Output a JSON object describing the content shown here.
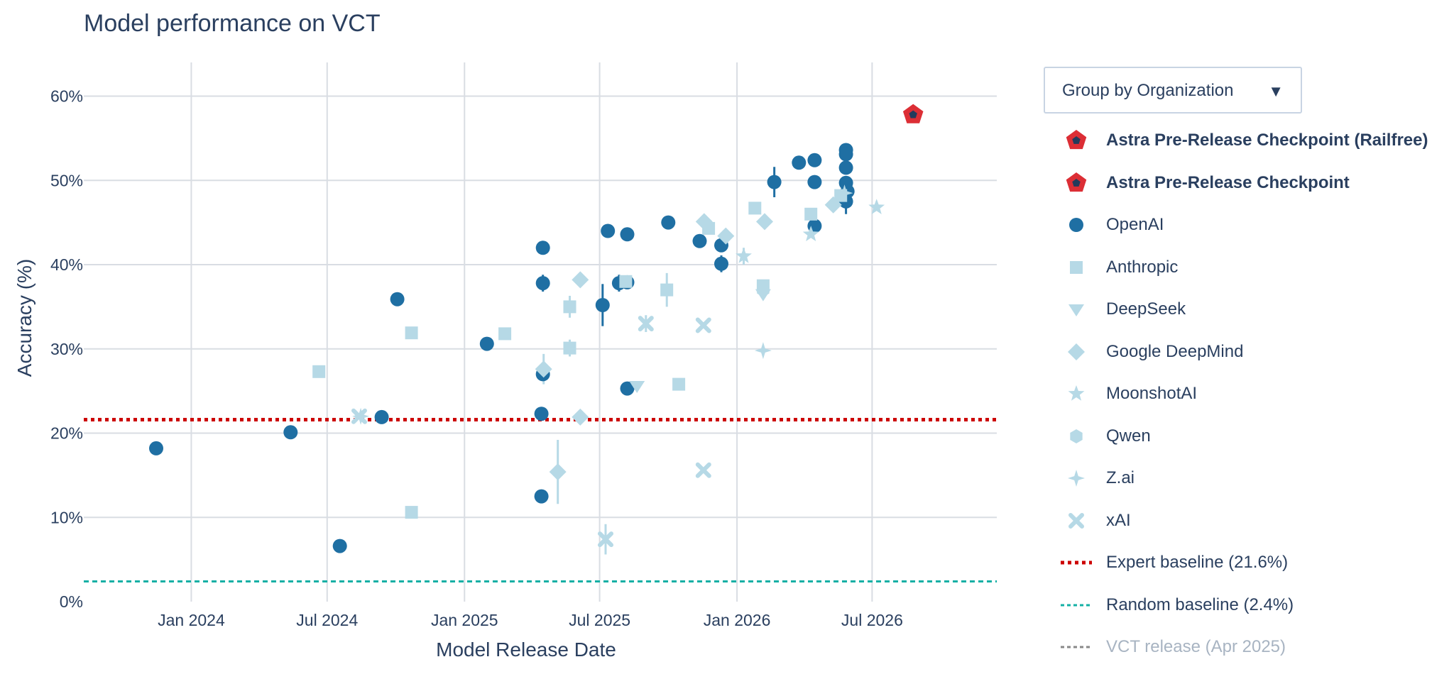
{
  "title": "Model performance on VCT",
  "controls": {
    "group_by_label": "Group by Organization",
    "caret": "▼"
  },
  "colors": {
    "openai": "#1f6fa3",
    "light": "#b6d9e6",
    "astra_fill": "#dc2e35",
    "astra_core": "#233b5c",
    "expert": "#cc0000",
    "random": "#14b0a5",
    "vct": "#888888",
    "grid": "#d9dde3"
  },
  "legend": [
    {
      "key": "astra_railfree",
      "label": "Astra Pre-Release Checkpoint (Railfree)",
      "symbol": "pentagon-red",
      "bold": true
    },
    {
      "key": "astra",
      "label": "Astra Pre-Release Checkpoint",
      "symbol": "pentagon-red",
      "bold": true
    },
    {
      "key": "openai",
      "label": "OpenAI",
      "symbol": "circle-dark"
    },
    {
      "key": "anthropic",
      "label": "Anthropic",
      "symbol": "square"
    },
    {
      "key": "deepseek",
      "label": "DeepSeek",
      "symbol": "triangle-down"
    },
    {
      "key": "google",
      "label": "Google DeepMind",
      "symbol": "diamond"
    },
    {
      "key": "moonshot",
      "label": "MoonshotAI",
      "symbol": "star"
    },
    {
      "key": "qwen",
      "label": "Qwen",
      "symbol": "hexagon"
    },
    {
      "key": "zai",
      "label": "Z.ai",
      "symbol": "star4"
    },
    {
      "key": "xai",
      "label": "xAI",
      "symbol": "x"
    },
    {
      "key": "expert",
      "label": "Expert baseline (21.6%)",
      "symbol": "dot-red"
    },
    {
      "key": "random",
      "label": "Random baseline (2.4%)",
      "symbol": "dot-teal"
    },
    {
      "key": "vct",
      "label": "VCT release (Apr 2025)",
      "symbol": "dot-gray",
      "faded": true
    }
  ],
  "chart_data": {
    "type": "scatter",
    "xlabel": "Model Release Date",
    "ylabel": "Accuracy (%)",
    "xlim": [
      "2023-08-10",
      "2026-12-15"
    ],
    "ylim": [
      0,
      64
    ],
    "x_ticks": [
      {
        "date": "2024-01-01",
        "label": "Jan 2024"
      },
      {
        "date": "2024-07-01",
        "label": "Jul 2024"
      },
      {
        "date": "2025-01-01",
        "label": "Jan 2025"
      },
      {
        "date": "2025-07-01",
        "label": "Jul 2025"
      },
      {
        "date": "2026-01-01",
        "label": "Jan 2026"
      },
      {
        "date": "2026-07-01",
        "label": "Jul 2026"
      }
    ],
    "y_ticks": [
      0,
      10,
      20,
      30,
      40,
      50,
      60
    ],
    "y_tick_suffix": "%",
    "grid": true,
    "legend_position": "right",
    "baselines": [
      {
        "name": "Expert baseline (21.6%)",
        "y": 21.6,
        "color": "#cc0000",
        "style": "dotted"
      },
      {
        "name": "Random baseline (2.4%)",
        "y": 2.4,
        "color": "#14b0a5",
        "style": "dashed"
      }
    ],
    "series": [
      {
        "name": "Astra Pre-Release Checkpoint (Railfree)",
        "symbol": "pentagon",
        "points": [
          {
            "x": "2026-08-25",
            "y": 57.8
          }
        ]
      },
      {
        "name": "OpenAI",
        "symbol": "circle",
        "points": [
          {
            "x": "2023-11-15",
            "y": 18.2
          },
          {
            "x": "2024-05-13",
            "y": 20.1
          },
          {
            "x": "2024-07-18",
            "y": 6.6
          },
          {
            "x": "2024-09-12",
            "y": 21.9
          },
          {
            "x": "2024-10-03",
            "y": 35.9
          },
          {
            "x": "2025-01-31",
            "y": 30.6
          },
          {
            "x": "2025-04-14",
            "y": 22.3
          },
          {
            "x": "2025-04-14",
            "y": 12.5
          },
          {
            "x": "2025-04-16",
            "y": 27.0
          },
          {
            "x": "2025-04-16",
            "y": 37.8,
            "err": 1.0
          },
          {
            "x": "2025-04-16",
            "y": 42.0
          },
          {
            "x": "2025-07-05",
            "y": 35.2,
            "err": 2.5
          },
          {
            "x": "2025-07-12",
            "y": 44.0,
            "err": 0.7
          },
          {
            "x": "2025-07-27",
            "y": 37.8,
            "err": 1.0
          },
          {
            "x": "2025-08-07",
            "y": 43.6
          },
          {
            "x": "2025-08-07",
            "y": 25.3
          },
          {
            "x": "2025-08-07",
            "y": 37.9
          },
          {
            "x": "2025-10-01",
            "y": 45.0,
            "err": 0.6
          },
          {
            "x": "2025-11-12",
            "y": 42.8
          },
          {
            "x": "2025-12-11",
            "y": 42.3
          },
          {
            "x": "2025-12-11",
            "y": 40.1,
            "err": 1.0
          },
          {
            "x": "2026-02-20",
            "y": 49.8,
            "err": 1.8
          },
          {
            "x": "2026-03-25",
            "y": 52.1
          },
          {
            "x": "2026-04-15",
            "y": 52.4
          },
          {
            "x": "2026-04-15",
            "y": 49.8,
            "err": 0.7
          },
          {
            "x": "2026-04-15",
            "y": 44.6
          },
          {
            "x": "2026-05-27",
            "y": 53.6
          },
          {
            "x": "2026-05-27",
            "y": 53.1
          },
          {
            "x": "2026-05-27",
            "y": 51.5
          },
          {
            "x": "2026-05-27",
            "y": 49.7
          },
          {
            "x": "2026-05-27",
            "y": 47.5,
            "err": 1.5
          },
          {
            "x": "2026-05-29",
            "y": 48.7
          }
        ]
      },
      {
        "name": "Anthropic",
        "symbol": "square",
        "points": [
          {
            "x": "2024-06-20",
            "y": 27.3
          },
          {
            "x": "2024-10-22",
            "y": 31.9
          },
          {
            "x": "2024-10-22",
            "y": 10.6
          },
          {
            "x": "2025-02-24",
            "y": 31.8
          },
          {
            "x": "2025-05-22",
            "y": 35.0,
            "err": 1.3
          },
          {
            "x": "2025-05-22",
            "y": 30.1,
            "err": 1.0
          },
          {
            "x": "2025-08-05",
            "y": 38.0
          },
          {
            "x": "2025-09-29",
            "y": 37.0,
            "err": 2.0
          },
          {
            "x": "2025-10-15",
            "y": 25.8
          },
          {
            "x": "2025-11-24",
            "y": 44.3
          },
          {
            "x": "2026-01-25",
            "y": 46.7
          },
          {
            "x": "2026-02-05",
            "y": 37.5
          },
          {
            "x": "2026-04-10",
            "y": 46.0
          },
          {
            "x": "2026-05-20",
            "y": 48.2
          }
        ]
      },
      {
        "name": "DeepSeek",
        "symbol": "triangle-down",
        "points": [
          {
            "x": "2025-08-20",
            "y": 25.6
          },
          {
            "x": "2026-02-05",
            "y": 36.5
          }
        ]
      },
      {
        "name": "Google DeepMind",
        "symbol": "diamond",
        "points": [
          {
            "x": "2025-04-17",
            "y": 27.6,
            "err": 1.8
          },
          {
            "x": "2025-05-06",
            "y": 15.4,
            "err": 3.8
          },
          {
            "x": "2025-06-05",
            "y": 38.2
          },
          {
            "x": "2025-06-05",
            "y": 21.9
          },
          {
            "x": "2025-11-18",
            "y": 45.1
          },
          {
            "x": "2025-12-17",
            "y": 43.4
          },
          {
            "x": "2026-02-07",
            "y": 45.1
          },
          {
            "x": "2026-05-10",
            "y": 47.1
          }
        ]
      },
      {
        "name": "MoonshotAI",
        "symbol": "star",
        "points": [
          {
            "x": "2026-01-10",
            "y": 41.0,
            "err": 1.0
          },
          {
            "x": "2026-04-10",
            "y": 43.6
          },
          {
            "x": "2026-07-07",
            "y": 46.8
          }
        ]
      },
      {
        "name": "Qwen",
        "symbol": "hexagon",
        "points": [
          {
            "x": "2026-02-05",
            "y": 37.0
          }
        ]
      },
      {
        "name": "Z.ai",
        "symbol": "star4",
        "points": [
          {
            "x": "2024-08-15",
            "y": 22.0
          },
          {
            "x": "2026-02-05",
            "y": 29.8
          },
          {
            "x": "2026-05-25",
            "y": 48.5
          }
        ]
      },
      {
        "name": "xAI",
        "symbol": "x",
        "points": [
          {
            "x": "2024-08-13",
            "y": 22.0
          },
          {
            "x": "2025-07-09",
            "y": 7.4,
            "err": 1.8
          },
          {
            "x": "2025-09-01",
            "y": 33.0,
            "err": 1.0
          },
          {
            "x": "2025-11-17",
            "y": 32.8
          },
          {
            "x": "2025-11-17",
            "y": 15.6
          }
        ]
      }
    ]
  }
}
